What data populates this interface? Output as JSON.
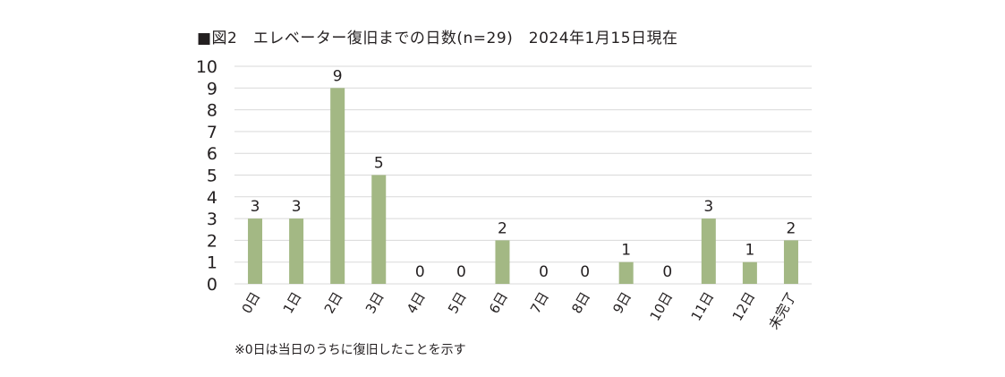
{
  "chart_data": {
    "type": "bar",
    "title": "■図2　エレベーター復旧までの日数(n=29)　2024年1月15日現在",
    "categories": [
      "0日",
      "1日",
      "2日",
      "3日",
      "4日",
      "5日",
      "6日",
      "7日",
      "8日",
      "9日",
      "10日",
      "11日",
      "12日",
      "未完了"
    ],
    "values": [
      3,
      3,
      9,
      5,
      0,
      0,
      2,
      0,
      0,
      1,
      0,
      3,
      1,
      2
    ],
    "ylim": [
      0,
      10
    ],
    "yticks": [
      0,
      1,
      2,
      3,
      4,
      5,
      6,
      7,
      8,
      9,
      10
    ],
    "xlabel": "",
    "ylabel": "",
    "grid": true,
    "bar_color": "#a3b884",
    "grid_color": "#d9d9d9",
    "footnote": "※0日は当日のうちに復旧したことを示す"
  }
}
